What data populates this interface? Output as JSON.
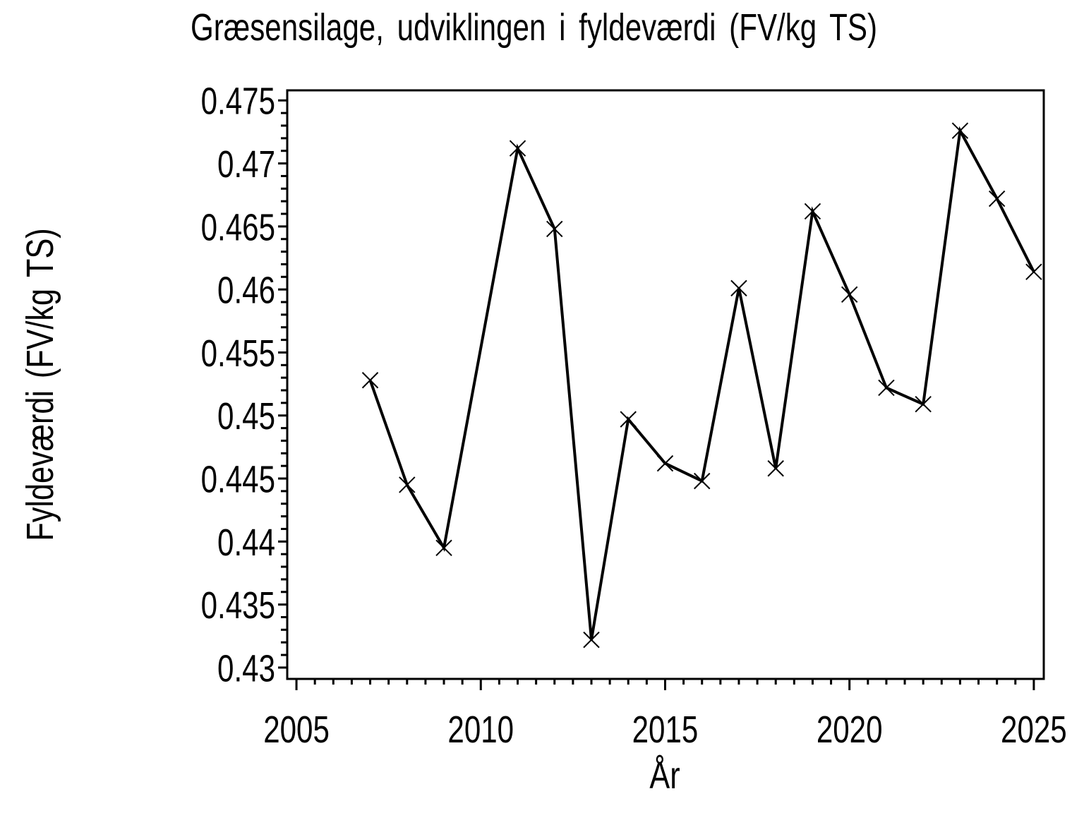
{
  "figure": {
    "background": "#ffffff",
    "foreground": "#000000"
  },
  "chart_data": {
    "type": "line",
    "title": "Græsensilage, udviklingen i fyldeværdi (FV/kg TS)",
    "xlabel": "År",
    "ylabel": "Fyldeværdi (FV/kg TS)",
    "series": [
      {
        "name": "Fyldeværdi",
        "x": [
          2007,
          2008,
          2009,
          2010,
          2011,
          2012,
          2013,
          2014,
          2015,
          2016,
          2017,
          2018,
          2019,
          2020,
          2021,
          2022,
          2023,
          2024,
          2025
        ],
        "values": [
          0.4528,
          0.4445,
          0.4395,
          null,
          0.4712,
          0.4648,
          0.4322,
          0.4497,
          0.4462,
          0.4448,
          0.4601,
          0.4458,
          0.4662,
          0.4596,
          0.4522,
          0.4509,
          0.4726,
          0.4672,
          0.4614
        ]
      }
    ],
    "marker": "x",
    "marker_size": 22,
    "line_color": "#000000",
    "xlim": [
      2004.75,
      2025.27
    ],
    "ylim": [
      0.4291,
      0.4758
    ],
    "x_major_ticks": [
      2005,
      2010,
      2015,
      2020,
      2025
    ],
    "x_tick_labels": [
      "2005",
      "2010",
      "2015",
      "2020",
      "2025"
    ],
    "x_minor_step": 0.5,
    "y_major_ticks": [
      0.43,
      0.435,
      0.44,
      0.445,
      0.45,
      0.455,
      0.46,
      0.465,
      0.47,
      0.475
    ],
    "y_tick_labels": [
      "0.43",
      "0.435",
      "0.44",
      "0.445",
      "0.45",
      "0.455",
      "0.46",
      "0.465",
      "0.47",
      "0.475"
    ],
    "y_minor_step": 0.001,
    "grid": false,
    "legend": "none"
  }
}
